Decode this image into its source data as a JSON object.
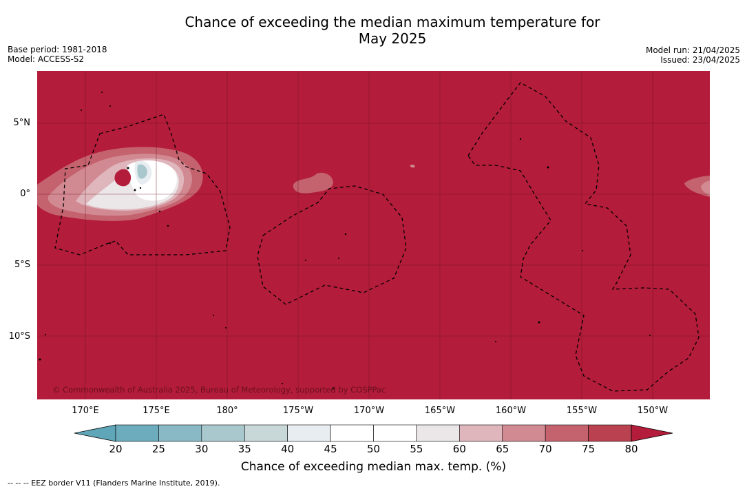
{
  "title": "Chance of exceeding the median maximum temperature for",
  "subtitle": "May 2025",
  "meta": {
    "base_period": "Base period: 1981-2018",
    "model": "Model: ACCESS-S2",
    "model_run": "Model run: 21/04/2025",
    "issued": "Issued: 23/04/2025"
  },
  "axes": {
    "lat_labels": [
      "5°N",
      "0°",
      "5°S",
      "10°S"
    ],
    "lon_labels": [
      "170°E",
      "175°E",
      "180°",
      "175°W",
      "170°W",
      "165°W",
      "160°W",
      "155°W",
      "150°W"
    ]
  },
  "copyright": "© Commonwealth of Australia 2025, Bureau of Meteorology, supported by COSPPac",
  "colorbar": {
    "ticks": [
      "20",
      "25",
      "30",
      "35",
      "40",
      "45",
      "50",
      "55",
      "60",
      "65",
      "70",
      "75",
      "80"
    ],
    "colors": [
      "#5fa6b8",
      "#6cacbd",
      "#8ab9c6",
      "#a9c8cd",
      "#c8d7d8",
      "#e7edf0",
      "#ffffff",
      "#ffffff",
      "#ebe6e7",
      "#dfb6bc",
      "#d28a92",
      "#c4626e",
      "#b94150",
      "#b31c3a"
    ],
    "label": "Chance of exceeding median max. temp. (%)"
  },
  "footnote": "--  --  -- EEZ border V11 (Flanders Marine Institute, 2019).",
  "colors": {
    "background_field": "#b31c3a",
    "grid": "#6b1220",
    "eez_border": "#000000"
  }
}
